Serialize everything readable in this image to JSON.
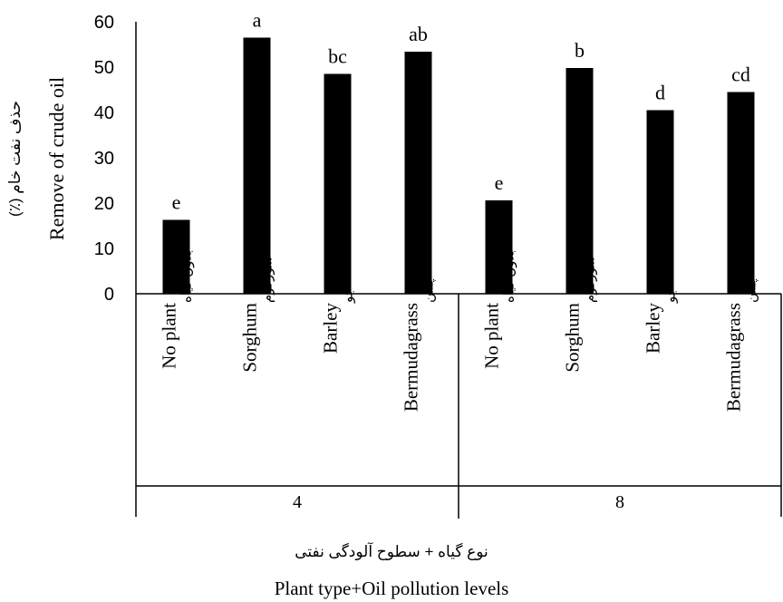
{
  "chart_data": {
    "type": "bar",
    "title": "",
    "ylabel_fa": "حذف نفت خام (٪)",
    "ylabel": "Remove of crude oil",
    "xlabel_fa": "نوع گیاه + سطوح آلودگی نفتی",
    "xlabel": "Plant type+Oil pollution levels",
    "ylim": [
      0,
      60
    ],
    "yticks": [
      "0",
      "10",
      "20",
      "30",
      "40",
      "50",
      "60"
    ],
    "grid": false,
    "legend": "none",
    "bar_color": "#000000",
    "groups": [
      {
        "label": "4",
        "bars": [
          {
            "en": "No plant",
            "fa": "بدون گیاه",
            "value": 16.3,
            "letter": "e"
          },
          {
            "en": "Sorghum",
            "fa": "سورگوم",
            "value": 56.5,
            "letter": "a"
          },
          {
            "en": "Barley",
            "fa": "جو",
            "value": 48.5,
            "letter": "bc"
          },
          {
            "en": "Bermudagrass",
            "fa": "چمن",
            "value": 53.4,
            "letter": "ab"
          }
        ]
      },
      {
        "label": "8",
        "bars": [
          {
            "en": "No plant",
            "fa": "بدون گیاه",
            "value": 20.6,
            "letter": "e"
          },
          {
            "en": "Sorghum",
            "fa": "سورگوم",
            "value": 49.8,
            "letter": "b"
          },
          {
            "en": "Barley",
            "fa": "جو",
            "value": 40.5,
            "letter": "d"
          },
          {
            "en": "Bermudagrass",
            "fa": "چمن",
            "value": 44.5,
            "letter": "cd"
          }
        ]
      }
    ]
  }
}
